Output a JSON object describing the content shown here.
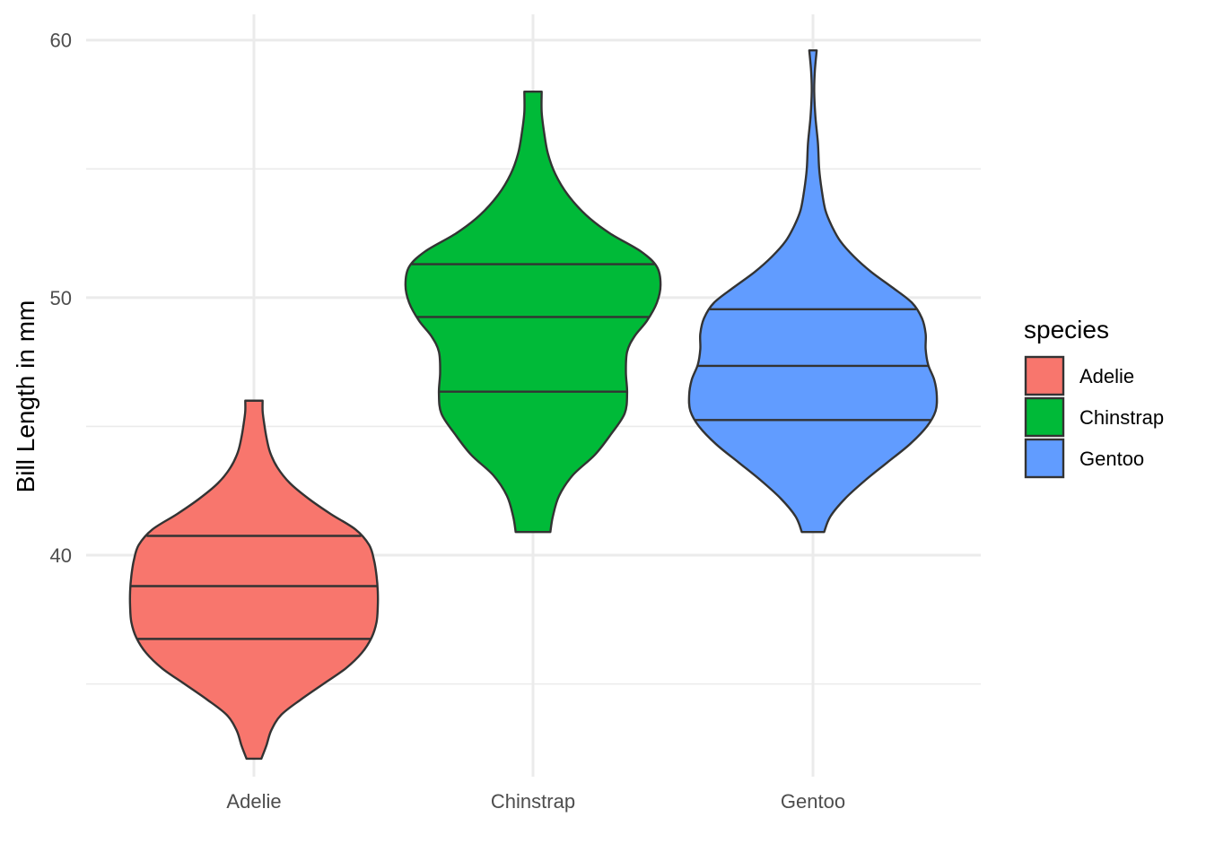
{
  "chart_data": {
    "type": "violin",
    "ylabel": "Bill Length  in mm",
    "xlabel": "",
    "categories": [
      "Adelie",
      "Chinstrap",
      "Gentoo"
    ],
    "ylim": [
      31.4,
      61.0
    ],
    "yticks": [
      40,
      50,
      60
    ],
    "yminor": [
      35,
      45,
      55
    ],
    "grid": true,
    "legend_title": "species",
    "legend_position": "right",
    "series": [
      {
        "name": "Adelie",
        "color": "#F8766D",
        "min": 32.1,
        "max": 46.0,
        "quantiles": [
          36.75,
          38.8,
          40.75
        ],
        "density": [
          [
            32.1,
            0.06
          ],
          [
            32.6,
            0.1
          ],
          [
            33.2,
            0.14
          ],
          [
            33.8,
            0.22
          ],
          [
            34.4,
            0.38
          ],
          [
            35.0,
            0.56
          ],
          [
            35.6,
            0.74
          ],
          [
            36.2,
            0.87
          ],
          [
            36.8,
            0.95
          ],
          [
            37.4,
            0.99
          ],
          [
            38.0,
            1.0
          ],
          [
            38.6,
            1.0
          ],
          [
            39.2,
            0.99
          ],
          [
            39.8,
            0.97
          ],
          [
            40.4,
            0.93
          ],
          [
            41.0,
            0.82
          ],
          [
            41.6,
            0.62
          ],
          [
            42.2,
            0.44
          ],
          [
            42.8,
            0.29
          ],
          [
            43.4,
            0.19
          ],
          [
            44.0,
            0.13
          ],
          [
            44.6,
            0.1
          ],
          [
            45.2,
            0.08
          ],
          [
            45.6,
            0.07
          ],
          [
            46.0,
            0.07
          ]
        ]
      },
      {
        "name": "Chinstrap",
        "color": "#00BA38",
        "min": 40.9,
        "max": 58.0,
        "quantiles": [
          46.35,
          49.25,
          51.3
        ],
        "density": [
          [
            40.9,
            0.14
          ],
          [
            41.5,
            0.16
          ],
          [
            42.3,
            0.21
          ],
          [
            43.1,
            0.32
          ],
          [
            43.9,
            0.5
          ],
          [
            44.7,
            0.63
          ],
          [
            45.5,
            0.74
          ],
          [
            46.3,
            0.76
          ],
          [
            47.1,
            0.75
          ],
          [
            47.9,
            0.76
          ],
          [
            48.5,
            0.82
          ],
          [
            49.1,
            0.92
          ],
          [
            49.8,
            1.0
          ],
          [
            50.5,
            1.03
          ],
          [
            51.2,
            1.0
          ],
          [
            51.8,
            0.87
          ],
          [
            52.5,
            0.62
          ],
          [
            53.2,
            0.43
          ],
          [
            54.0,
            0.28
          ],
          [
            54.8,
            0.18
          ],
          [
            55.6,
            0.12
          ],
          [
            56.4,
            0.09
          ],
          [
            57.2,
            0.07
          ],
          [
            58.0,
            0.07
          ]
        ]
      },
      {
        "name": "Gentoo",
        "color": "#619CFF",
        "min": 40.9,
        "max": 59.6,
        "quantiles": [
          45.25,
          47.35,
          49.55
        ],
        "density": [
          [
            40.9,
            0.09
          ],
          [
            41.5,
            0.14
          ],
          [
            42.2,
            0.26
          ],
          [
            42.9,
            0.42
          ],
          [
            43.6,
            0.6
          ],
          [
            44.3,
            0.78
          ],
          [
            45.0,
            0.92
          ],
          [
            45.6,
            0.99
          ],
          [
            46.2,
            1.0
          ],
          [
            46.8,
            0.98
          ],
          [
            47.4,
            0.93
          ],
          [
            48.0,
            0.91
          ],
          [
            48.6,
            0.91
          ],
          [
            49.2,
            0.88
          ],
          [
            49.8,
            0.8
          ],
          [
            50.4,
            0.64
          ],
          [
            51.0,
            0.47
          ],
          [
            51.6,
            0.33
          ],
          [
            52.2,
            0.22
          ],
          [
            52.8,
            0.15
          ],
          [
            53.4,
            0.1
          ],
          [
            54.2,
            0.07
          ],
          [
            55.0,
            0.05
          ],
          [
            56.0,
            0.04
          ],
          [
            57.0,
            0.02
          ],
          [
            58.0,
            0.01
          ],
          [
            58.8,
            0.015
          ],
          [
            59.6,
            0.03
          ]
        ]
      }
    ]
  }
}
